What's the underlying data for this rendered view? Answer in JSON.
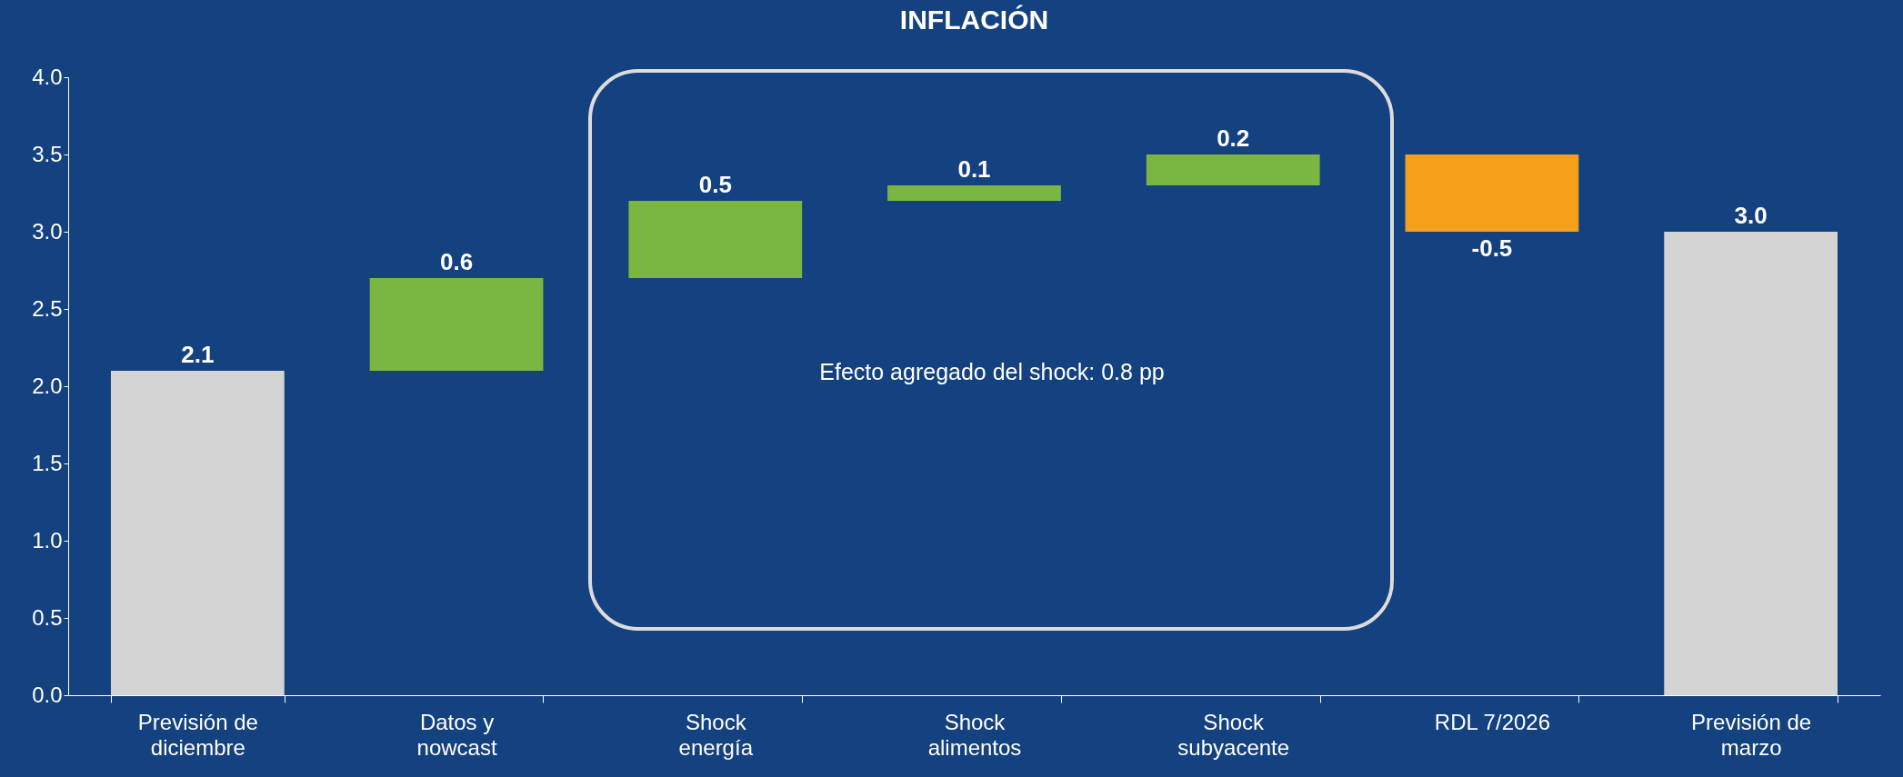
{
  "chart_data": {
    "type": "bar",
    "title": "INFLACIÓN",
    "categories": [
      "Previsión de diciembre",
      "Datos y nowcast",
      "Shock energía",
      "Shock alimentos",
      "Shock subyacente",
      "RDL 7/2026",
      "Previsión de marzo"
    ],
    "values": [
      2.1,
      0.6,
      0.5,
      0.1,
      0.2,
      -0.5,
      3.0
    ],
    "base": [
      0,
      2.1,
      2.7,
      3.2,
      3.3,
      3.5,
      0
    ],
    "colors": [
      "#d4d4d4",
      "#7cb642",
      "#7cb642",
      "#7cb642",
      "#7cb642",
      "#f5a01a",
      "#d4d4d4"
    ],
    "value_labels": [
      "2.1",
      "0.6",
      "0.5",
      "0.1",
      "0.2",
      "-0.5",
      "3.0"
    ],
    "ylim": [
      0,
      4
    ],
    "yticks": [
      {
        "value": 0,
        "label": "0.0"
      },
      {
        "value": 0.5,
        "label": "0.5"
      },
      {
        "value": 1,
        "label": "1.0"
      },
      {
        "value": 1.5,
        "label": "1.5"
      },
      {
        "value": 2,
        "label": "2.0"
      },
      {
        "value": 2.5,
        "label": "2.5"
      },
      {
        "value": 3,
        "label": "3.0"
      },
      {
        "value": 3.5,
        "label": "3.5"
      },
      {
        "value": 4,
        "label": "4.0"
      }
    ],
    "grid": false,
    "legend": false,
    "annotations": [
      "Efecto agregado del shock: 0.8 pp"
    ]
  }
}
